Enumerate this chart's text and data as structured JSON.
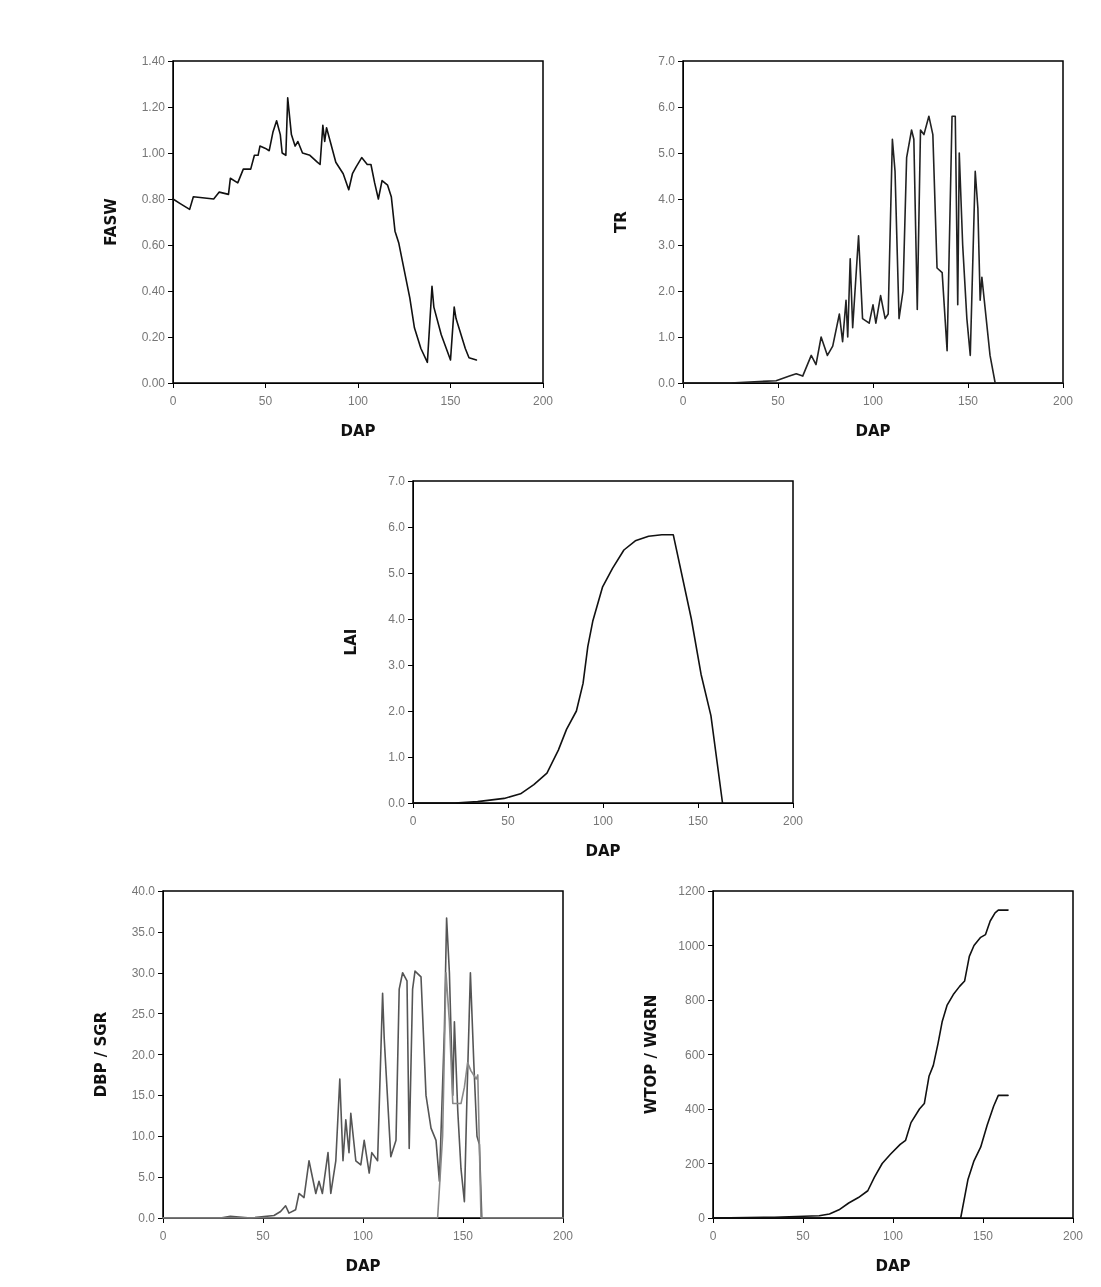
{
  "chart_data": [
    {
      "type": "line",
      "xlabel": "DAP",
      "ylabel": "FASW",
      "xlim": [
        0,
        200
      ],
      "xticks": [
        0,
        50,
        100,
        150,
        200
      ],
      "ylim": [
        0,
        1.4
      ],
      "yticks": [
        {
          "value": 0,
          "label": "0.00"
        },
        {
          "value": 0.2,
          "label": "0.20"
        },
        {
          "value": 0.4,
          "label": "0.40"
        },
        {
          "value": 0.6,
          "label": "0.60"
        },
        {
          "value": 0.8,
          "label": "0.80"
        },
        {
          "value": 1,
          "label": "1.00"
        },
        {
          "value": 1.2,
          "label": "1.20"
        },
        {
          "value": 1.4,
          "label": "1.40"
        }
      ],
      "grid": false,
      "marker": "none",
      "line_style": "solid",
      "x": [
        0,
        3.9,
        9,
        11,
        22,
        25,
        30,
        31,
        35,
        38,
        42,
        44,
        46,
        47,
        50,
        52,
        54,
        56,
        58,
        59,
        61,
        62,
        64,
        66,
        67.5,
        70,
        74,
        78,
        79.5,
        81,
        82,
        83,
        85,
        88,
        92,
        95,
        97,
        99,
        102,
        105,
        107,
        109,
        111,
        113,
        116,
        118,
        120,
        122,
        124,
        128,
        130.5,
        134,
        137.5,
        140,
        141,
        145,
        150,
        152,
        153,
        158,
        160,
        164
      ],
      "series": [
        {
          "color": "#111111",
          "values": [
            0.8,
            0.78,
            0.755,
            0.81,
            0.8,
            0.83,
            0.82,
            0.89,
            0.87,
            0.93,
            0.93,
            0.99,
            0.99,
            1.03,
            1.02,
            1.01,
            1.09,
            1.14,
            1.08,
            1.0,
            0.99,
            1.24,
            1.08,
            1.03,
            1.05,
            1.0,
            0.99,
            0.96,
            0.95,
            1.12,
            1.05,
            1.11,
            1.05,
            0.96,
            0.91,
            0.84,
            0.91,
            0.94,
            0.98,
            0.95,
            0.95,
            0.87,
            0.8,
            0.88,
            0.86,
            0.81,
            0.66,
            0.61,
            0.53,
            0.37,
            0.24,
            0.15,
            0.09,
            0.42,
            0.33,
            0.21,
            0.1,
            0.33,
            0.28,
            0.15,
            0.11,
            0.1
          ]
        }
      ]
    },
    {
      "type": "line",
      "xlabel": "DAP",
      "ylabel": "TR",
      "xlim": [
        0,
        200
      ],
      "xticks": [
        0,
        50,
        100,
        150,
        200
      ],
      "ylim": [
        0,
        7
      ],
      "yticks": [
        {
          "value": 0,
          "label": "0.0"
        },
        {
          "value": 1,
          "label": "1.0"
        },
        {
          "value": 2,
          "label": "2.0"
        },
        {
          "value": 3,
          "label": "3.0"
        },
        {
          "value": 4,
          "label": "4.0"
        },
        {
          "value": 5,
          "label": "5.0"
        },
        {
          "value": 6,
          "label": "6.0"
        },
        {
          "value": 7,
          "label": "7.0"
        }
      ],
      "grid": false,
      "marker": "none",
      "line_style": "solid",
      "x": [
        0,
        24.8,
        49,
        56,
        59.6,
        63,
        67.5,
        70,
        72.7,
        76,
        78.8,
        82.3,
        84,
        85.8,
        86.7,
        88,
        89.3,
        91,
        92.4,
        94.5,
        98,
        100,
        101.5,
        104,
        106.4,
        108,
        110.2,
        111.6,
        113.7,
        115.8,
        117.7,
        120.3,
        121.5,
        123.3,
        125,
        126.8,
        129.4,
        131.5,
        133.7,
        136.4,
        139,
        141.6,
        143.3,
        144.6,
        145.4,
        147.2,
        149.4,
        151.2,
        153.8,
        155.2,
        156.4,
        157.3,
        161.6,
        164.3,
        200
      ],
      "series": [
        {
          "color": "#222222",
          "values": [
            0,
            0,
            0.05,
            0.15,
            0.2,
            0.15,
            0.6,
            0.4,
            1.0,
            0.6,
            0.8,
            1.5,
            0.9,
            1.8,
            1.0,
            2.7,
            1.2,
            2.3,
            3.2,
            1.4,
            1.3,
            1.7,
            1.3,
            1.9,
            1.4,
            1.5,
            5.3,
            4.6,
            1.4,
            2.0,
            4.9,
            5.5,
            5.3,
            1.6,
            5.5,
            5.4,
            5.8,
            5.4,
            2.5,
            2.4,
            0.7,
            5.8,
            5.8,
            1.7,
            5.0,
            3.0,
            1.4,
            0.6,
            4.6,
            3.8,
            1.8,
            2.3,
            0.6,
            0,
            0
          ]
        }
      ]
    },
    {
      "type": "line",
      "xlabel": "DAP",
      "ylabel": "LAI",
      "xlim": [
        0,
        200
      ],
      "xticks": [
        0,
        50,
        100,
        150,
        200
      ],
      "ylim": [
        0,
        7
      ],
      "yticks": [
        {
          "value": 0,
          "label": "0.0"
        },
        {
          "value": 1,
          "label": "1.0"
        },
        {
          "value": 2,
          "label": "2.0"
        },
        {
          "value": 3,
          "label": "3.0"
        },
        {
          "value": 4,
          "label": "4.0"
        },
        {
          "value": 5,
          "label": "5.0"
        },
        {
          "value": 6,
          "label": "6.0"
        },
        {
          "value": 7,
          "label": "7.0"
        }
      ],
      "grid": false,
      "marker": "none",
      "line_style": "solid",
      "x": [
        0,
        22,
        34,
        48,
        56.6,
        63.6,
        70.5,
        76.5,
        80.8,
        86,
        89.5,
        92,
        94.6,
        99.8,
        105,
        111,
        117,
        124,
        131,
        137,
        146.5,
        151.6,
        156.8,
        162.9
      ],
      "series": [
        {
          "color": "#111111",
          "values": [
            0,
            0,
            0.03,
            0.1,
            0.2,
            0.4,
            0.65,
            1.15,
            1.6,
            2.0,
            2.6,
            3.4,
            3.95,
            4.7,
            5.1,
            5.5,
            5.7,
            5.8,
            5.83,
            5.83,
            4.0,
            2.8,
            1.9,
            0
          ]
        }
      ]
    },
    {
      "type": "line",
      "xlabel": "DAP",
      "ylabel": "DBP / SGR",
      "xlim": [
        0,
        200
      ],
      "xticks": [
        0,
        50,
        100,
        150,
        200
      ],
      "ylim": [
        0,
        40
      ],
      "yticks": [
        {
          "value": 0,
          "label": "0.0"
        },
        {
          "value": 5,
          "label": "5.0"
        },
        {
          "value": 10,
          "label": "10.0"
        },
        {
          "value": 15,
          "label": "15.0"
        },
        {
          "value": 20,
          "label": "20.0"
        },
        {
          "value": 25,
          "label": "25.0"
        },
        {
          "value": 30,
          "label": "30.0"
        },
        {
          "value": 35,
          "label": "35.0"
        },
        {
          "value": 40,
          "label": "40.0"
        }
      ],
      "grid": false,
      "marker": "none",
      "line_style": "solid",
      "series": [
        {
          "color": "#555555",
          "x": [
            0,
            28.7,
            33.7,
            43.8,
            55.5,
            58.8,
            61.3,
            63,
            66.3,
            68,
            70.5,
            73,
            76.4,
            78,
            79.7,
            82.5,
            83.9,
            86.4,
            88.4,
            90,
            91.4,
            93,
            93.9,
            96.4,
            98.9,
            100.6,
            103.1,
            104.4,
            107.3,
            109.8,
            110.6,
            113.9,
            116.5,
            118.1,
            119.8,
            122,
            123.1,
            124.8,
            126,
            129,
            131.5,
            134,
            136.5,
            138.2,
            140.7,
            141.8,
            143.2,
            144.9,
            145.7,
            147.4,
            149,
            150.7,
            152,
            153.7,
            155.4,
            157,
            158.2,
            159.4,
            200
          ],
          "values": [
            0,
            0,
            0.2,
            0,
            0.3,
            0.8,
            1.5,
            0.6,
            1.0,
            3.0,
            2.5,
            7.0,
            3.0,
            4.5,
            3.0,
            8.0,
            3.0,
            7.0,
            17.0,
            7.0,
            12.0,
            8.0,
            12.8,
            7.0,
            6.5,
            9.5,
            5.5,
            8.0,
            7.0,
            27.5,
            22,
            7.5,
            9.5,
            28,
            30,
            29,
            8.5,
            28,
            30.2,
            29.5,
            15,
            11,
            9.5,
            4.5,
            23,
            36.7,
            30,
            15,
            24,
            13,
            6,
            2.0,
            15,
            30,
            19,
            10,
            9,
            0,
            0
          ]
        },
        {
          "color": "#888888",
          "x": [
            0,
            137.3,
            139.8,
            141.5,
            143.2,
            144.9,
            146.6,
            149,
            150.7,
            152.3,
            154,
            156.6,
            157.4,
            159,
            200
          ],
          "values": [
            0,
            0,
            10,
            30,
            24,
            14,
            14,
            14,
            16,
            19,
            18,
            17,
            17.5,
            0,
            0
          ]
        }
      ]
    },
    {
      "type": "line",
      "xlabel": "DAP",
      "ylabel": "WTOP / WGRN",
      "xlim": [
        0,
        200
      ],
      "xticks": [
        0,
        50,
        100,
        150,
        200
      ],
      "ylim": [
        0,
        1200
      ],
      "yticks": [
        0,
        200,
        400,
        600,
        800,
        1000,
        1200
      ],
      "grid": false,
      "marker": "none",
      "line_style": "solid",
      "series": [
        {
          "color": "#111111",
          "x": [
            0,
            34,
            59,
            64.7,
            70,
            75.4,
            80.8,
            86,
            89.7,
            94,
            98.7,
            104,
            107,
            110,
            114.7,
            117.4,
            120,
            122.4,
            125,
            127.3,
            130,
            133.5,
            137,
            139.8,
            142.4,
            145,
            148.7,
            151.4,
            154,
            156.7,
            158.5,
            163.9
          ],
          "values": [
            0,
            3,
            8,
            15,
            30,
            55,
            75,
            100,
            150,
            200,
            235,
            270,
            285,
            350,
            400,
            420,
            520,
            560,
            640,
            720,
            780,
            820,
            850,
            870,
            960,
            1000,
            1030,
            1040,
            1090,
            1120,
            1130,
            1130
          ]
        },
        {
          "color": "#111111",
          "x": [
            0,
            137.6,
            141.6,
            145,
            148.7,
            152.3,
            155.9,
            158.5,
            163.9
          ],
          "values": [
            0,
            0,
            140,
            210,
            260,
            340,
            410,
            450,
            450
          ]
        }
      ]
    }
  ]
}
